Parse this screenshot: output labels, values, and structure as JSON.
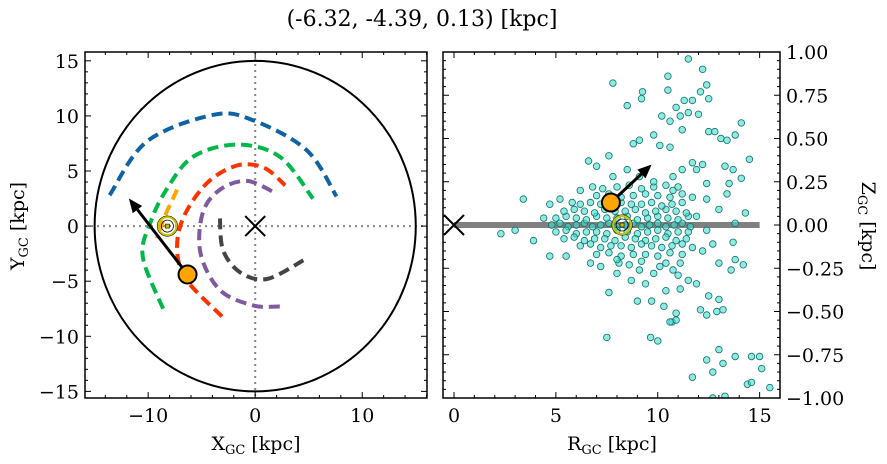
{
  "title": "(-6.32, -4.39, 0.13) [kpc]",
  "colors": {
    "blue": "#0f62a4",
    "green": "#00b84a",
    "orange": "#ffa500",
    "red": "#ff3300",
    "purple": "#7f5a9f",
    "darkgray": "#444444",
    "scatter_fill": "#40e0d0",
    "scatter_edge": "#16706a",
    "sun": "#c8c400",
    "grid": "#888888",
    "galactic_plane": "#808080"
  },
  "chart_data": [
    {
      "type": "line",
      "xlabel": "X",
      "xlabel_sub": "GC",
      "xlabel_unit": " [kpc]",
      "ylabel": "Y",
      "ylabel_sub": "GC",
      "ylabel_unit": " [kpc]",
      "xlim": [
        -15.9,
        16.05
      ],
      "ylim": [
        -15.6,
        15.8
      ],
      "xticks": [
        -10,
        0,
        10
      ],
      "xtick_labels": [
        "−10",
        "0",
        "10"
      ],
      "yticks": [
        -15,
        -10,
        -5,
        0,
        5,
        10,
        15
      ],
      "ytick_labels": [
        "−15",
        "−10",
        "−5",
        "0",
        "5",
        "10",
        "15"
      ],
      "xminor": 2,
      "yminor": 1,
      "boundary_circle_radius": 15,
      "reference_lines": {
        "x": 0,
        "y": 0,
        "style": "dotted"
      },
      "galactic_center_marker": {
        "x": 0,
        "y": 0,
        "marker": "x"
      },
      "sun": {
        "x": -8.2,
        "y": 0
      },
      "object": {
        "x": -6.32,
        "y": -4.39
      },
      "velocity_arrow": {
        "from": [
          -6.32,
          -4.39
        ],
        "to": [
          -11.8,
          2.5
        ]
      },
      "series": [
        {
          "color": "blue",
          "style": "dashed",
          "points": [
            [
              -13.6,
              2.8
            ],
            [
              -10.1,
              7.7
            ],
            [
              -3.9,
              10.1
            ],
            [
              -0.2,
              9.6
            ],
            [
              4.8,
              6.9
            ],
            [
              7.6,
              2.7
            ]
          ]
        },
        {
          "color": "green",
          "style": "dashed",
          "points": [
            [
              -8.6,
              -7.5
            ],
            [
              -10.5,
              -2.8
            ],
            [
              -9.8,
              0.3
            ],
            [
              -8.3,
              3.3
            ],
            [
              -5.8,
              6.3
            ],
            [
              -1.7,
              7.4
            ],
            [
              2.3,
              6.3
            ],
            [
              5.4,
              2.5
            ]
          ]
        },
        {
          "color": "orange",
          "style": "dashed",
          "points": [
            [
              -7.3,
              3.3
            ],
            [
              -8.4,
              1.0
            ],
            [
              -9.2,
              -1.1
            ]
          ]
        },
        {
          "color": "red",
          "style": "dashed",
          "points": [
            [
              -3.1,
              -8.2
            ],
            [
              -6.4,
              -4.9
            ],
            [
              -7.3,
              -2.2
            ],
            [
              -6.7,
              0.8
            ],
            [
              -4.5,
              3.9
            ],
            [
              -1.7,
              5.5
            ],
            [
              0.8,
              5.3
            ],
            [
              2.8,
              3.7
            ]
          ]
        },
        {
          "color": "purple",
          "style": "dashed",
          "points": [
            [
              2.3,
              -7.3
            ],
            [
              -0.2,
              -7.2
            ],
            [
              -3.3,
              -5.8
            ],
            [
              -5.1,
              -2.5
            ],
            [
              -4.9,
              1.2
            ],
            [
              -3.3,
              3.3
            ],
            [
              -0.8,
              4.1
            ],
            [
              1.7,
              3.1
            ]
          ]
        },
        {
          "color": "darkgray",
          "style": "dashed",
          "points": [
            [
              -3.3,
              0.7
            ],
            [
              -3.0,
              -2.2
            ],
            [
              -1.4,
              -4.2
            ],
            [
              1.1,
              -4.8
            ],
            [
              4.5,
              -3.1
            ]
          ]
        }
      ]
    },
    {
      "type": "scatter",
      "xlabel": "R",
      "xlabel_sub": "GC",
      "xlabel_unit": " [kpc]",
      "ylabel": "Z",
      "ylabel_sub": "GC",
      "ylabel_unit": " [kpc]",
      "xlim": [
        -0.54,
        16.0
      ],
      "ylim": [
        -1.0,
        1.0
      ],
      "xticks": [
        0,
        5,
        10,
        15
      ],
      "xtick_labels": [
        "0",
        "5",
        "10",
        "15"
      ],
      "yticks": [
        -1,
        -0.75,
        -0.5,
        -0.25,
        0,
        0.25,
        0.5,
        0.75,
        1
      ],
      "ytick_labels": [
        "−1.00",
        "−0.75",
        "−0.50",
        "−0.25",
        "0.00",
        "0.25",
        "0.50",
        "0.75",
        "1.00"
      ],
      "ytick_side": "right",
      "xminor": 1,
      "yminor": 0.05,
      "galactic_plane": {
        "z": 0,
        "r_range": [
          0,
          15
        ]
      },
      "galactic_center_marker": {
        "x": 0,
        "y": 0,
        "marker": "x"
      },
      "sun": {
        "x": 8.25,
        "y": 0
      },
      "object": {
        "x": 7.7,
        "y": 0.13
      },
      "velocity_arrow": {
        "from": [
          7.7,
          0.13
        ],
        "to": [
          9.7,
          0.35
        ]
      },
      "points": [
        [
          11.5,
          0.96
        ],
        [
          12.2,
          0.9
        ],
        [
          7.8,
          0.82
        ],
        [
          10.5,
          0.86
        ],
        [
          10.5,
          0.78
        ],
        [
          12.4,
          0.81
        ],
        [
          9.25,
          0.77
        ],
        [
          9.2,
          0.73
        ],
        [
          8.5,
          0.69
        ],
        [
          11.3,
          0.72
        ],
        [
          11.7,
          0.72
        ],
        [
          12.1,
          0.77
        ],
        [
          12.5,
          0.73
        ],
        [
          10.9,
          0.68
        ],
        [
          11.5,
          0.65
        ],
        [
          12.0,
          0.64
        ],
        [
          10.2,
          0.63
        ],
        [
          10.6,
          0.6
        ],
        [
          11.1,
          0.63
        ],
        [
          14.1,
          0.59
        ],
        [
          11.2,
          0.55
        ],
        [
          9.8,
          0.52
        ],
        [
          13.8,
          0.52
        ],
        [
          12.5,
          0.54
        ],
        [
          12.8,
          0.54
        ],
        [
          13.1,
          0.5
        ],
        [
          13.4,
          0.49
        ],
        [
          8.8,
          0.47
        ],
        [
          9.1,
          0.49
        ],
        [
          10.1,
          0.46
        ],
        [
          10.6,
          0.45
        ],
        [
          14.5,
          0.38
        ],
        [
          14.1,
          0.27
        ],
        [
          14.3,
          0.07
        ],
        [
          13.8,
          0.01
        ],
        [
          13.7,
          -0.1
        ],
        [
          13.8,
          -0.2
        ],
        [
          14.2,
          -0.23
        ],
        [
          6.6,
          0.37
        ],
        [
          7.0,
          0.34
        ],
        [
          7.6,
          0.4
        ],
        [
          3.4,
          0.15
        ],
        [
          2.3,
          -0.05
        ],
        [
          3.0,
          -0.03
        ],
        [
          3.9,
          -0.09
        ],
        [
          4.7,
          -0.18
        ],
        [
          4.4,
          0.04
        ],
        [
          4.7,
          0.12
        ],
        [
          7.5,
          -0.65
        ],
        [
          9.65,
          -0.65
        ],
        [
          10.0,
          -0.67
        ],
        [
          10.7,
          -0.56
        ],
        [
          10.9,
          -0.55
        ],
        [
          10.9,
          -0.51
        ],
        [
          12.1,
          -0.49
        ],
        [
          12.4,
          -0.52
        ],
        [
          12.9,
          -0.5
        ],
        [
          13.2,
          -0.49
        ],
        [
          13.0,
          -0.72
        ],
        [
          12.4,
          -0.78
        ],
        [
          12.7,
          -0.85
        ],
        [
          11.7,
          -0.88
        ],
        [
          13.2,
          -0.8
        ],
        [
          13.8,
          -0.76
        ],
        [
          14.6,
          -0.76
        ],
        [
          15.0,
          -0.76
        ],
        [
          15.1,
          -0.83
        ],
        [
          14.4,
          -0.92
        ],
        [
          14.6,
          -0.91
        ],
        [
          15.5,
          -0.94
        ],
        [
          12.7,
          -1.0
        ],
        [
          13.3,
          -0.99
        ],
        [
          7.6,
          -0.39
        ],
        [
          9.0,
          -0.44
        ],
        [
          9.7,
          -0.44
        ],
        [
          10.3,
          -0.47
        ],
        [
          10.6,
          -0.56
        ],
        [
          12.5,
          -0.41
        ],
        [
          13.0,
          -0.43
        ],
        [
          13.6,
          -0.26
        ],
        [
          13.0,
          -0.22
        ],
        [
          12.7,
          -0.11
        ],
        [
          13.5,
          0.24
        ],
        [
          13.4,
          0.18
        ],
        [
          13.0,
          0.09
        ],
        [
          13.3,
          0.34
        ],
        [
          13.7,
          0.32
        ],
        [
          12.4,
          0.24
        ],
        [
          11.9,
          0.32
        ],
        [
          11.2,
          0.32
        ],
        [
          11.7,
          0.36
        ],
        [
          12.2,
          0.35
        ],
        [
          11.9,
          -0.34
        ],
        [
          11.5,
          -0.32
        ],
        [
          11.1,
          -0.37
        ],
        [
          10.4,
          -0.38
        ],
        [
          9.4,
          -0.34
        ],
        [
          8.7,
          -0.32
        ],
        [
          8.0,
          -0.28
        ],
        [
          7.2,
          -0.24
        ],
        [
          6.7,
          -0.22
        ],
        [
          5.5,
          -0.18
        ],
        [
          5.2,
          0.15
        ],
        [
          5.8,
          0.13
        ],
        [
          6.2,
          0.2
        ],
        [
          6.8,
          0.22
        ],
        [
          7.3,
          0.21
        ],
        [
          7.8,
          0.28
        ],
        [
          8.5,
          0.32
        ],
        [
          9.1,
          0.28
        ],
        [
          9.8,
          0.22
        ],
        [
          10.75,
          0.28
        ],
        [
          10.75,
          0.2
        ],
        [
          11.7,
          0.16
        ],
        [
          12.4,
          0.15
        ],
        [
          11.9,
          0.05
        ],
        [
          12.4,
          -0.03
        ],
        [
          11.7,
          -0.13
        ],
        [
          12.2,
          -0.15
        ],
        [
          11.1,
          -0.22
        ],
        [
          10.75,
          -0.26
        ],
        [
          10.1,
          -0.24
        ],
        [
          9.1,
          -0.26
        ],
        [
          8.1,
          -0.22
        ],
        [
          4.8,
          0.0
        ],
        [
          5.2,
          0.01
        ],
        [
          5.6,
          -0.01
        ],
        [
          6.0,
          0.0
        ],
        [
          6.4,
          0.01
        ],
        [
          6.8,
          -0.01
        ],
        [
          7.2,
          0.0
        ],
        [
          7.6,
          0.01
        ],
        [
          8.0,
          -0.01
        ],
        [
          8.4,
          0.0
        ],
        [
          8.8,
          0.01
        ],
        [
          9.2,
          -0.01
        ],
        [
          9.6,
          0.0
        ],
        [
          10.0,
          0.01
        ],
        [
          10.4,
          -0.01
        ],
        [
          10.8,
          0.0
        ],
        [
          11.2,
          0.01
        ],
        [
          11.6,
          -0.01
        ],
        [
          5.0,
          0.04
        ],
        [
          5.5,
          0.05
        ],
        [
          6.0,
          0.04
        ],
        [
          6.5,
          0.03
        ],
        [
          7.0,
          0.05
        ],
        [
          7.5,
          0.04
        ],
        [
          8.0,
          0.04
        ],
        [
          8.5,
          0.05
        ],
        [
          9.0,
          0.03
        ],
        [
          9.5,
          0.04
        ],
        [
          10.0,
          0.05
        ],
        [
          10.5,
          0.04
        ],
        [
          11.0,
          0.03
        ],
        [
          11.5,
          0.05
        ],
        [
          5.0,
          -0.04
        ],
        [
          5.5,
          -0.03
        ],
        [
          6.0,
          -0.05
        ],
        [
          6.5,
          -0.04
        ],
        [
          7.0,
          -0.04
        ],
        [
          7.5,
          -0.05
        ],
        [
          8.0,
          -0.03
        ],
        [
          8.5,
          -0.04
        ],
        [
          9.0,
          -0.05
        ],
        [
          9.5,
          -0.04
        ],
        [
          10.0,
          -0.03
        ],
        [
          10.5,
          -0.05
        ],
        [
          11.0,
          -0.04
        ],
        [
          11.5,
          -0.04
        ],
        [
          5.4,
          0.08
        ],
        [
          5.9,
          0.09
        ],
        [
          6.4,
          0.08
        ],
        [
          6.9,
          0.07
        ],
        [
          7.4,
          0.09
        ],
        [
          7.9,
          0.08
        ],
        [
          8.4,
          0.08
        ],
        [
          8.9,
          0.09
        ],
        [
          9.4,
          0.07
        ],
        [
          9.9,
          0.08
        ],
        [
          10.4,
          0.09
        ],
        [
          10.9,
          0.08
        ],
        [
          11.4,
          0.07
        ],
        [
          5.4,
          -0.08
        ],
        [
          5.9,
          -0.07
        ],
        [
          6.4,
          -0.09
        ],
        [
          6.9,
          -0.08
        ],
        [
          7.4,
          -0.08
        ],
        [
          7.9,
          -0.09
        ],
        [
          8.4,
          -0.07
        ],
        [
          8.9,
          -0.08
        ],
        [
          9.4,
          -0.09
        ],
        [
          9.9,
          -0.08
        ],
        [
          10.4,
          -0.07
        ],
        [
          10.9,
          -0.09
        ],
        [
          11.4,
          -0.08
        ],
        [
          6.2,
          0.12
        ],
        [
          6.7,
          0.13
        ],
        [
          7.2,
          0.12
        ],
        [
          7.7,
          0.11
        ],
        [
          8.2,
          0.13
        ],
        [
          8.7,
          0.12
        ],
        [
          9.2,
          0.12
        ],
        [
          9.7,
          0.13
        ],
        [
          10.2,
          0.11
        ],
        [
          10.7,
          0.12
        ],
        [
          11.2,
          0.13
        ],
        [
          6.2,
          -0.12
        ],
        [
          6.7,
          -0.11
        ],
        [
          7.2,
          -0.13
        ],
        [
          7.7,
          -0.12
        ],
        [
          8.2,
          -0.12
        ],
        [
          8.7,
          -0.13
        ],
        [
          9.2,
          -0.11
        ],
        [
          9.7,
          -0.12
        ],
        [
          10.2,
          -0.13
        ],
        [
          10.7,
          -0.12
        ],
        [
          11.2,
          -0.11
        ],
        [
          7.0,
          0.17
        ],
        [
          7.6,
          0.18
        ],
        [
          8.2,
          0.16
        ],
        [
          8.8,
          0.17
        ],
        [
          9.4,
          0.18
        ],
        [
          10.0,
          0.17
        ],
        [
          10.6,
          0.16
        ],
        [
          11.2,
          0.18
        ],
        [
          7.0,
          -0.17
        ],
        [
          7.6,
          -0.16
        ],
        [
          8.2,
          -0.18
        ],
        [
          8.8,
          -0.17
        ],
        [
          9.4,
          -0.17
        ],
        [
          10.0,
          -0.18
        ],
        [
          10.6,
          -0.16
        ],
        [
          11.2,
          -0.17
        ],
        [
          8.0,
          0.22
        ],
        [
          8.6,
          0.23
        ],
        [
          9.2,
          0.21
        ],
        [
          9.8,
          0.25
        ],
        [
          10.4,
          0.23
        ],
        [
          11.0,
          0.22
        ],
        [
          8.0,
          -0.2
        ],
        [
          8.6,
          -0.23
        ],
        [
          9.2,
          -0.21
        ],
        [
          9.8,
          -0.28
        ],
        [
          10.4,
          -0.22
        ],
        [
          11.0,
          -0.29
        ]
      ]
    }
  ]
}
